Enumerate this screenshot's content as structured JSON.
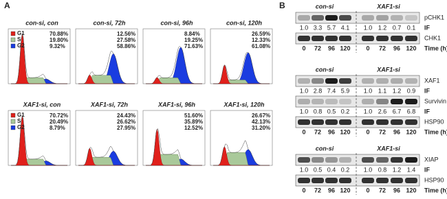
{
  "panel_a": {
    "label": "A",
    "rows": [
      {
        "plots": [
          {
            "title": "con-si, con",
            "legend": [
              "G1",
              "S",
              "G2"
            ],
            "percentages": [
              "70.88%",
              "19.80%",
              "9.32%"
            ]
          },
          {
            "title": "con-si, 72h",
            "percentages": [
              "12.56%",
              "27.58%",
              "58.86%"
            ]
          },
          {
            "title": "con-si, 96h",
            "percentages": [
              "8.84%",
              "19.25%",
              "71.63%"
            ]
          },
          {
            "title": "con-si, 120h",
            "percentages": [
              "26.59%",
              "12.33%",
              "61.08%"
            ]
          }
        ]
      },
      {
        "plots": [
          {
            "title": "XAF1-si, con",
            "legend": [
              "G1",
              "S",
              "G2"
            ],
            "percentages": [
              "70.72%",
              "20.49%",
              "8.79%"
            ]
          },
          {
            "title": "XAF1-si, 72h",
            "percentages": [
              "24.43%",
              "26.62%",
              "27.95%"
            ]
          },
          {
            "title": "XAF1-si, 96h",
            "percentages": [
              "51.60%",
              "35.89%",
              "12.52%"
            ]
          },
          {
            "title": "XAF1-si, 120h",
            "percentages": [
              "26.67%",
              "42.13%",
              "31.20%"
            ]
          }
        ]
      }
    ]
  },
  "panel_b": {
    "label": "B",
    "blocks": [
      {
        "groups": [
          "con-si",
          "XAF1-si"
        ],
        "bands": [
          {
            "name": "pCHK1",
            "if_label": "IF",
            "if": [
              "1.0",
              "3.3",
              "5.7",
              "4.1",
              "1.0",
              "1.2",
              "0.7",
              "0.1"
            ]
          },
          {
            "name": "CHK1"
          }
        ],
        "times": [
          0,
          72,
          96,
          120,
          0,
          72,
          96,
          120
        ],
        "time_label": "Time (h)"
      },
      {
        "groups": [
          "con-si",
          "XAF1-si"
        ],
        "bands": [
          {
            "name": "XAF1",
            "if_label": "IF",
            "if": [
              "1.0",
              "2.8",
              "7.4",
              "5.9",
              "1.0",
              "1.1",
              "1.2",
              "0.9"
            ]
          },
          {
            "name": "Survivin",
            "if_label": "IF",
            "if": [
              "1.0",
              "0.8",
              "0.5",
              "0.2",
              "1.0",
              "2.6",
              "6.7",
              "6.8"
            ]
          },
          {
            "name": "HSP90"
          }
        ],
        "times": [
          0,
          72,
          96,
          120,
          0,
          72,
          96,
          120
        ],
        "time_label": "Time (h)"
      },
      {
        "groups": [
          "con-si",
          "XAF1-si"
        ],
        "bands": [
          {
            "name": "XIAP",
            "if_label": "IF",
            "if": [
              "1.0",
              "0.5",
              "0.4",
              "0.2",
              "1.0",
              "0.8",
              "1.2",
              "1.4"
            ]
          },
          {
            "name": "HSP90"
          }
        ],
        "times": [
          0,
          72,
          96,
          120,
          0,
          72,
          96,
          120
        ],
        "time_label": "Time (h)"
      }
    ]
  }
}
